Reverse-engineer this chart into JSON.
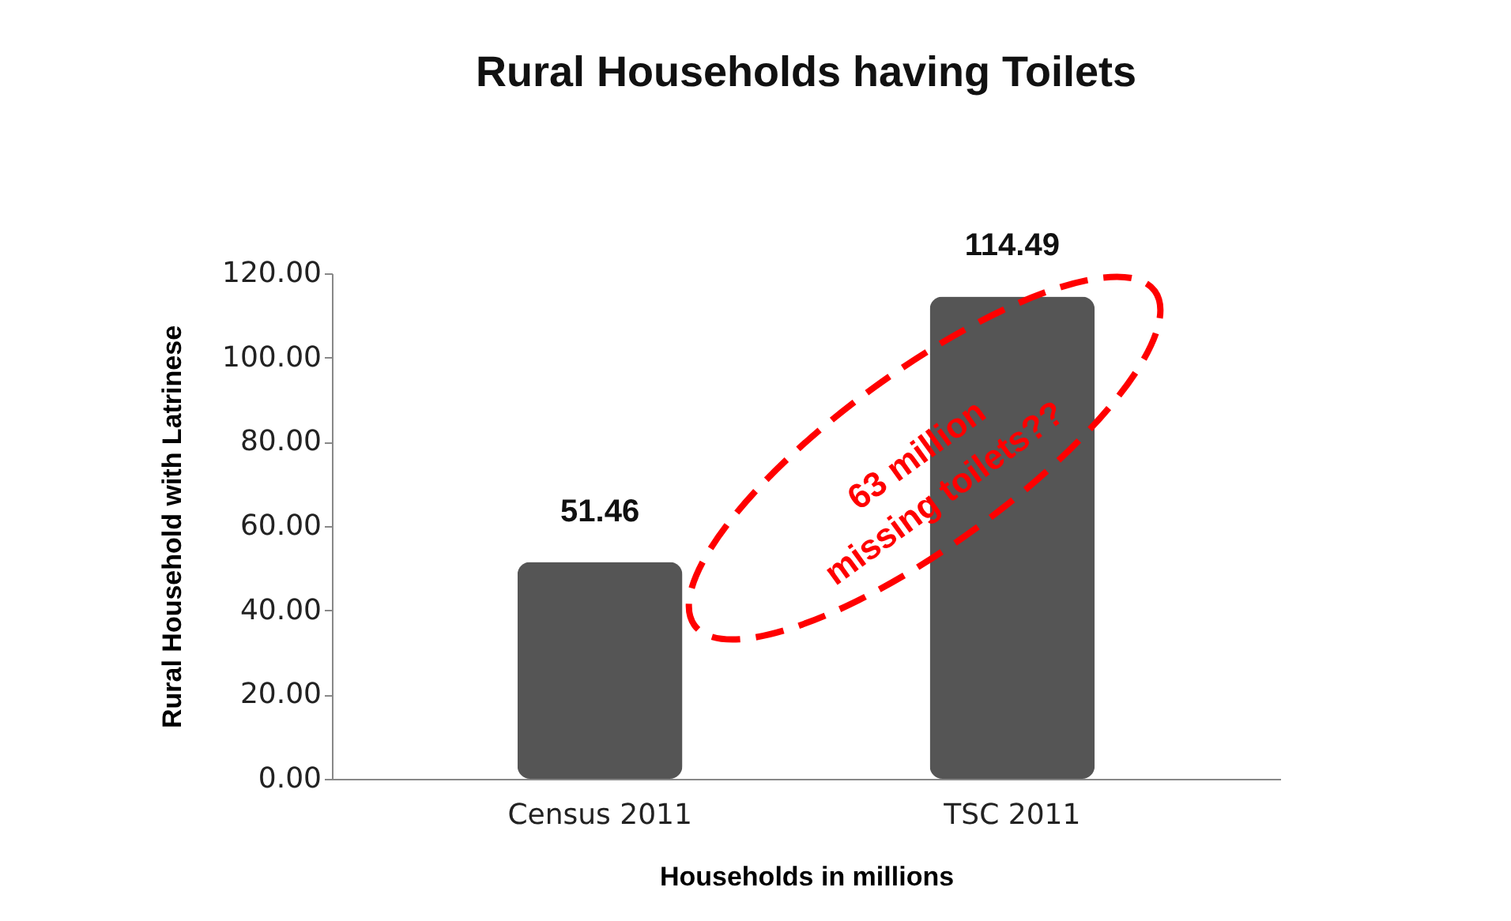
{
  "chart_data": {
    "type": "bar",
    "title": "Rural Households having Toilets",
    "xlabel": "Households in millions",
    "ylabel": "Rural Household with Latrinese",
    "categories": [
      "Census 2011",
      "TSC 2011"
    ],
    "values": [
      51.46,
      114.49
    ],
    "color": "#555555",
    "ylim": [
      0,
      120
    ],
    "yticks": [
      {
        "value": 0,
        "label": "0.00"
      },
      {
        "value": 20,
        "label": "20.00"
      },
      {
        "value": 40,
        "label": "40.00"
      },
      {
        "value": 60,
        "label": "60.00"
      },
      {
        "value": 80,
        "label": "80.00"
      },
      {
        "value": 100,
        "label": "100.00"
      },
      {
        "value": 120,
        "label": "120.00"
      }
    ],
    "data_labels": true,
    "annotations": [
      "63 million\nmissing toilets??"
    ]
  }
}
